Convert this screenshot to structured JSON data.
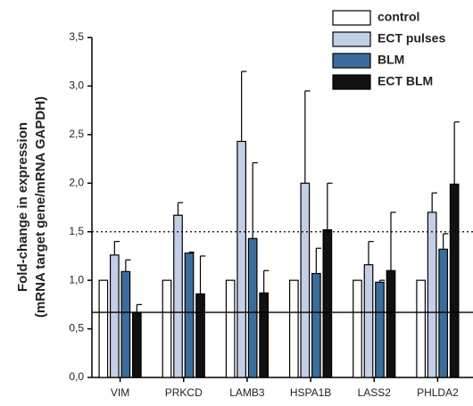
{
  "chart_data": {
    "type": "bar",
    "ylabel": [
      "Fold-change in expression",
      "(mRNA target gene/mRNA GAPDH)"
    ],
    "categories": [
      "VIM",
      "PRKCD",
      "LAMB3",
      "HSPA1B",
      "LASS2",
      "PHLDA2"
    ],
    "series": [
      {
        "name": "control",
        "color": "#ffffff",
        "values": [
          1.0,
          1.0,
          1.0,
          1.0,
          1.0,
          1.0
        ]
      },
      {
        "name": "ECT pulses",
        "color": "#c3cfe6",
        "values": [
          1.26,
          1.67,
          2.43,
          2.0,
          1.16,
          1.7
        ],
        "errors": [
          0.14,
          0.13,
          0.72,
          0.95,
          0.24,
          0.2
        ]
      },
      {
        "name": "BLM",
        "color": "#3b6d9c",
        "values": [
          1.09,
          1.28,
          1.43,
          1.07,
          0.98,
          1.32
        ],
        "errors": [
          0.12,
          0.01,
          0.78,
          0.26,
          0.02,
          0.16
        ]
      },
      {
        "name": "ECT BLM",
        "color": "#111111",
        "values": [
          0.67,
          0.86,
          0.87,
          1.52,
          1.1,
          1.99
        ],
        "errors": [
          0.08,
          0.39,
          0.23,
          0.48,
          0.6,
          0.64
        ]
      }
    ],
    "ylim": [
      0,
      3.5
    ],
    "yticks": [
      {
        "value": 0,
        "label": "0,0"
      },
      {
        "value": 0.5,
        "label": "0,5"
      },
      {
        "value": 1,
        "label": "1,0"
      },
      {
        "value": 1.5,
        "label": "1,5"
      },
      {
        "value": 2,
        "label": "2,0"
      },
      {
        "value": 2.5,
        "label": "2,5"
      },
      {
        "value": 3,
        "label": "3,0"
      },
      {
        "value": 3.5,
        "label": "3,5"
      }
    ],
    "hlines": [
      {
        "value": 1.5,
        "style": "dotted"
      },
      {
        "value": 0.67,
        "style": "solid"
      }
    ],
    "legend": "top-right"
  }
}
